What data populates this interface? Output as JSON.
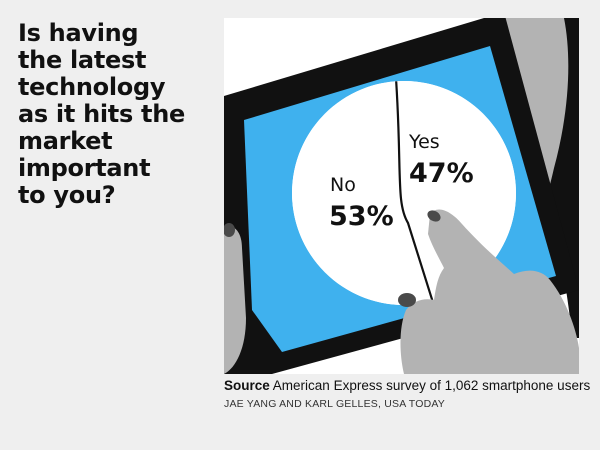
{
  "question": {
    "lines": [
      "Is having",
      "the latest",
      "technology",
      "as it hits the",
      "market",
      "important",
      "to you?"
    ]
  },
  "source": {
    "label": "Source",
    "text": "American Express survey of 1,062 smartphone users"
  },
  "credit": "JAE YANG AND KARL GELLES, USA TODAY",
  "colors": {
    "screen": "#3fb1ee",
    "tablet": "#111111",
    "hand": "#b3b3b3",
    "pie": "#ffffff",
    "background": "#efefef"
  },
  "chart_data": {
    "type": "pie",
    "slices": [
      {
        "label": "Yes",
        "value": 47,
        "display": "47%"
      },
      {
        "label": "No",
        "value": 53,
        "display": "53%"
      }
    ]
  }
}
